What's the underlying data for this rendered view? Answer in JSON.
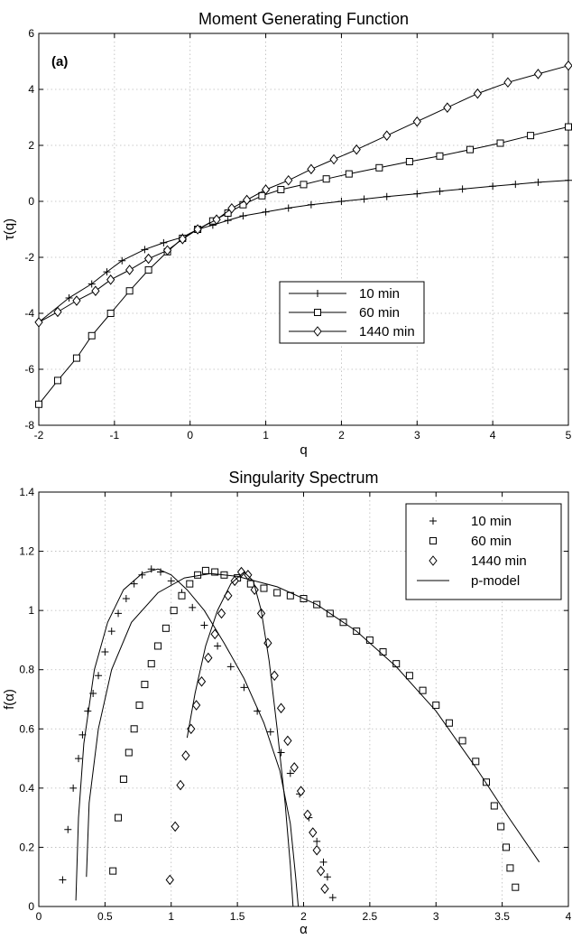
{
  "chart_data": [
    {
      "type": "line",
      "title": "Moment Generating Function",
      "panel_label": "(a)",
      "xlabel": "q",
      "ylabel": "τ(q)",
      "xlim": [
        -2,
        5
      ],
      "ylim": [
        -8,
        6
      ],
      "xticks": [
        "-2",
        "-1",
        "0",
        "1",
        "2",
        "3",
        "4",
        "5"
      ],
      "yticks": [
        "-8",
        "-6",
        "-4",
        "-2",
        "0",
        "2",
        "4",
        "6"
      ],
      "grid": true,
      "legend_position": "center-right",
      "series": [
        {
          "name": "10 min",
          "marker": "plus",
          "points": [
            [
              -2,
              -4.32
            ],
            [
              -1.6,
              -3.45
            ],
            [
              -1.3,
              -2.95
            ],
            [
              -1.1,
              -2.52
            ],
            [
              -0.9,
              -2.12
            ],
            [
              -0.6,
              -1.72
            ],
            [
              -0.35,
              -1.48
            ],
            [
              -0.1,
              -1.28
            ],
            [
              0.1,
              -1.0
            ],
            [
              0.3,
              -0.85
            ],
            [
              0.5,
              -0.68
            ],
            [
              0.7,
              -0.52
            ],
            [
              1.0,
              -0.38
            ],
            [
              1.3,
              -0.24
            ],
            [
              1.6,
              -0.12
            ],
            [
              2.0,
              0.0
            ],
            [
              2.3,
              0.08
            ],
            [
              2.6,
              0.17
            ],
            [
              3.0,
              0.27
            ],
            [
              3.3,
              0.36
            ],
            [
              3.6,
              0.44
            ],
            [
              4.0,
              0.54
            ],
            [
              4.3,
              0.61
            ],
            [
              4.6,
              0.68
            ],
            [
              5.0,
              0.75
            ]
          ]
        },
        {
          "name": "60 min",
          "marker": "square",
          "points": [
            [
              -2,
              -7.25
            ],
            [
              -1.75,
              -6.4
            ],
            [
              -1.5,
              -5.6
            ],
            [
              -1.3,
              -4.8
            ],
            [
              -1.05,
              -4.0
            ],
            [
              -0.8,
              -3.2
            ],
            [
              -0.55,
              -2.45
            ],
            [
              -0.3,
              -1.8
            ],
            [
              -0.1,
              -1.32
            ],
            [
              0.1,
              -1.0
            ],
            [
              0.3,
              -0.7
            ],
            [
              0.5,
              -0.42
            ],
            [
              0.7,
              -0.12
            ],
            [
              0.95,
              0.2
            ],
            [
              1.2,
              0.42
            ],
            [
              1.5,
              0.6
            ],
            [
              1.8,
              0.8
            ],
            [
              2.1,
              0.98
            ],
            [
              2.5,
              1.2
            ],
            [
              2.9,
              1.42
            ],
            [
              3.3,
              1.62
            ],
            [
              3.7,
              1.85
            ],
            [
              4.1,
              2.08
            ],
            [
              4.5,
              2.35
            ],
            [
              5.0,
              2.66
            ]
          ]
        },
        {
          "name": "1440 min",
          "marker": "diamond",
          "points": [
            [
              -2,
              -4.32
            ],
            [
              -1.75,
              -3.95
            ],
            [
              -1.5,
              -3.55
            ],
            [
              -1.25,
              -3.2
            ],
            [
              -1.05,
              -2.8
            ],
            [
              -0.8,
              -2.45
            ],
            [
              -0.55,
              -2.05
            ],
            [
              -0.3,
              -1.75
            ],
            [
              -0.1,
              -1.35
            ],
            [
              0.1,
              -1.0
            ],
            [
              0.35,
              -0.65
            ],
            [
              0.55,
              -0.25
            ],
            [
              0.75,
              0.05
            ],
            [
              1.0,
              0.42
            ],
            [
              1.3,
              0.75
            ],
            [
              1.6,
              1.15
            ],
            [
              1.9,
              1.5
            ],
            [
              2.2,
              1.85
            ],
            [
              2.6,
              2.35
            ],
            [
              3.0,
              2.85
            ],
            [
              3.4,
              3.35
            ],
            [
              3.8,
              3.85
            ],
            [
              4.2,
              4.25
            ],
            [
              4.6,
              4.55
            ],
            [
              5.0,
              4.85
            ]
          ]
        }
      ]
    },
    {
      "type": "scatter",
      "title": "Singularity Spectrum",
      "xlabel": "α",
      "ylabel": "f(α)",
      "xlim": [
        0,
        4
      ],
      "ylim": [
        0,
        1.4
      ],
      "xticks": [
        "0",
        "0.5",
        "1",
        "1.5",
        "2",
        "2.5",
        "3",
        "3.5",
        "4"
      ],
      "yticks": [
        "0",
        "0.2",
        "0.4",
        "0.6",
        "0.8",
        "1",
        "1.2",
        "1.4"
      ],
      "grid": true,
      "legend_position": "top-right",
      "series": [
        {
          "name": "10 min",
          "marker": "plus",
          "points": [
            [
              0.18,
              0.09
            ],
            [
              0.22,
              0.26
            ],
            [
              0.26,
              0.4
            ],
            [
              0.3,
              0.5
            ],
            [
              0.33,
              0.58
            ],
            [
              0.37,
              0.66
            ],
            [
              0.41,
              0.72
            ],
            [
              0.45,
              0.78
            ],
            [
              0.5,
              0.86
            ],
            [
              0.55,
              0.93
            ],
            [
              0.6,
              0.99
            ],
            [
              0.66,
              1.04
            ],
            [
              0.72,
              1.09
            ],
            [
              0.78,
              1.12
            ],
            [
              0.85,
              1.14
            ],
            [
              0.92,
              1.13
            ],
            [
              1.0,
              1.1
            ],
            [
              1.08,
              1.06
            ],
            [
              1.16,
              1.01
            ],
            [
              1.25,
              0.95
            ],
            [
              1.35,
              0.88
            ],
            [
              1.45,
              0.81
            ],
            [
              1.55,
              0.74
            ],
            [
              1.65,
              0.66
            ],
            [
              1.75,
              0.59
            ],
            [
              1.83,
              0.52
            ],
            [
              1.9,
              0.45
            ],
            [
              1.97,
              0.38
            ],
            [
              2.04,
              0.3
            ],
            [
              2.1,
              0.22
            ],
            [
              2.15,
              0.15
            ],
            [
              2.18,
              0.1
            ],
            [
              2.22,
              0.03
            ]
          ]
        },
        {
          "name": "60 min",
          "marker": "square",
          "points": [
            [
              0.56,
              0.12
            ],
            [
              0.6,
              0.3
            ],
            [
              0.64,
              0.43
            ],
            [
              0.68,
              0.52
            ],
            [
              0.72,
              0.6
            ],
            [
              0.76,
              0.68
            ],
            [
              0.8,
              0.75
            ],
            [
              0.85,
              0.82
            ],
            [
              0.9,
              0.88
            ],
            [
              0.96,
              0.94
            ],
            [
              1.02,
              1.0
            ],
            [
              1.08,
              1.05
            ],
            [
              1.14,
              1.09
            ],
            [
              1.2,
              1.12
            ],
            [
              1.26,
              1.135
            ],
            [
              1.33,
              1.13
            ],
            [
              1.4,
              1.12
            ],
            [
              1.5,
              1.11
            ],
            [
              1.6,
              1.09
            ],
            [
              1.7,
              1.075
            ],
            [
              1.8,
              1.06
            ],
            [
              1.9,
              1.05
            ],
            [
              2.0,
              1.04
            ],
            [
              2.1,
              1.02
            ],
            [
              2.2,
              0.99
            ],
            [
              2.3,
              0.96
            ],
            [
              2.4,
              0.93
            ],
            [
              2.5,
              0.9
            ],
            [
              2.6,
              0.86
            ],
            [
              2.7,
              0.82
            ],
            [
              2.8,
              0.78
            ],
            [
              2.9,
              0.73
            ],
            [
              3.0,
              0.68
            ],
            [
              3.1,
              0.62
            ],
            [
              3.2,
              0.56
            ],
            [
              3.3,
              0.49
            ],
            [
              3.38,
              0.42
            ],
            [
              3.44,
              0.34
            ],
            [
              3.49,
              0.27
            ],
            [
              3.53,
              0.2
            ],
            [
              3.56,
              0.13
            ],
            [
              3.6,
              0.065
            ]
          ]
        },
        {
          "name": "1440 min",
          "marker": "diamond",
          "points": [
            [
              0.99,
              0.09
            ],
            [
              1.03,
              0.27
            ],
            [
              1.07,
              0.41
            ],
            [
              1.11,
              0.51
            ],
            [
              1.15,
              0.6
            ],
            [
              1.19,
              0.68
            ],
            [
              1.23,
              0.76
            ],
            [
              1.28,
              0.84
            ],
            [
              1.33,
              0.92
            ],
            [
              1.38,
              0.99
            ],
            [
              1.43,
              1.05
            ],
            [
              1.48,
              1.1
            ],
            [
              1.53,
              1.13
            ],
            [
              1.58,
              1.12
            ],
            [
              1.63,
              1.07
            ],
            [
              1.68,
              0.99
            ],
            [
              1.73,
              0.89
            ],
            [
              1.78,
              0.78
            ],
            [
              1.83,
              0.67
            ],
            [
              1.88,
              0.56
            ],
            [
              1.93,
              0.47
            ],
            [
              1.98,
              0.39
            ],
            [
              2.03,
              0.31
            ],
            [
              2.07,
              0.25
            ],
            [
              2.1,
              0.19
            ],
            [
              2.13,
              0.12
            ],
            [
              2.16,
              0.06
            ]
          ]
        },
        {
          "name": "p-model",
          "marker": "line",
          "curves": [
            [
              [
                0.28,
                0.02
              ],
              [
                0.3,
                0.3
              ],
              [
                0.34,
                0.55
              ],
              [
                0.42,
                0.8
              ],
              [
                0.52,
                0.96
              ],
              [
                0.64,
                1.07
              ],
              [
                0.78,
                1.125
              ],
              [
                0.9,
                1.14
              ],
              [
                1.0,
                1.12
              ],
              [
                1.12,
                1.07
              ],
              [
                1.25,
                1.0
              ],
              [
                1.4,
                0.89
              ],
              [
                1.55,
                0.77
              ],
              [
                1.7,
                0.62
              ],
              [
                1.82,
                0.46
              ],
              [
                1.9,
                0.28
              ],
              [
                1.94,
                0.1
              ],
              [
                1.96,
                0.0
              ]
            ],
            [
              [
                0.36,
                0.1
              ],
              [
                0.38,
                0.35
              ],
              [
                0.45,
                0.6
              ],
              [
                0.55,
                0.8
              ],
              [
                0.7,
                0.96
              ],
              [
                0.9,
                1.06
              ],
              [
                1.1,
                1.11
              ],
              [
                1.3,
                1.125
              ],
              [
                1.5,
                1.115
              ],
              [
                1.8,
                1.08
              ],
              [
                2.1,
                1.02
              ],
              [
                2.4,
                0.93
              ],
              [
                2.7,
                0.81
              ],
              [
                3.0,
                0.66
              ],
              [
                3.3,
                0.47
              ],
              [
                3.55,
                0.3
              ],
              [
                3.78,
                0.15
              ]
            ],
            [
              [
                1.12,
                0.57
              ],
              [
                1.18,
                0.72
              ],
              [
                1.26,
                0.88
              ],
              [
                1.35,
                1.0
              ],
              [
                1.45,
                1.09
              ],
              [
                1.55,
                1.13
              ],
              [
                1.62,
                1.1
              ],
              [
                1.68,
                1.0
              ],
              [
                1.74,
                0.83
              ],
              [
                1.8,
                0.6
              ],
              [
                1.86,
                0.35
              ],
              [
                1.9,
                0.14
              ],
              [
                1.92,
                0.0
              ]
            ]
          ]
        }
      ]
    }
  ]
}
